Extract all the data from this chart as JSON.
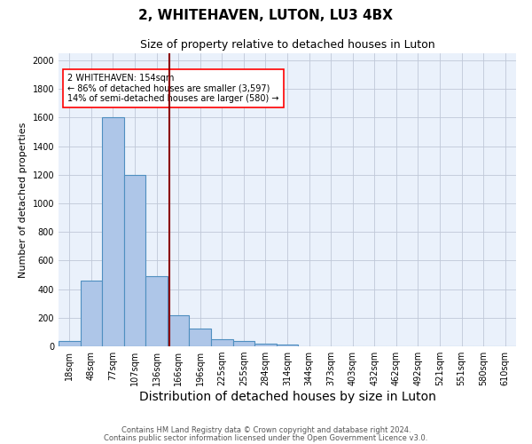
{
  "title": "2, WHITEHAVEN, LUTON, LU3 4BX",
  "subtitle": "Size of property relative to detached houses in Luton",
  "xlabel": "Distribution of detached houses by size in Luton",
  "ylabel": "Number of detached properties",
  "footnote1": "Contains HM Land Registry data © Crown copyright and database right 2024.",
  "footnote2": "Contains public sector information licensed under the Open Government Licence v3.0.",
  "bar_labels": [
    "18sqm",
    "48sqm",
    "77sqm",
    "107sqm",
    "136sqm",
    "166sqm",
    "196sqm",
    "225sqm",
    "255sqm",
    "284sqm",
    "314sqm",
    "344sqm",
    "373sqm",
    "403sqm",
    "432sqm",
    "462sqm",
    "492sqm",
    "521sqm",
    "551sqm",
    "580sqm",
    "610sqm"
  ],
  "bar_values": [
    35,
    460,
    1600,
    1200,
    490,
    215,
    125,
    50,
    35,
    20,
    10,
    0,
    0,
    0,
    0,
    0,
    0,
    0,
    0,
    0,
    0
  ],
  "bar_color": "#aec6e8",
  "bar_edgecolor": "#4f8fc0",
  "vline_x": 5.1,
  "vline_color": "#8b0000",
  "annotation_text": "2 WHITEHAVEN: 154sqm\n← 86% of detached houses are smaller (3,597)\n14% of semi-detached houses are larger (580) →",
  "annotation_box_color": "white",
  "annotation_box_edgecolor": "red",
  "ylim": [
    0,
    2050
  ],
  "yticks": [
    0,
    200,
    400,
    600,
    800,
    1000,
    1200,
    1400,
    1600,
    1800,
    2000
  ],
  "bg_color": "#eaf1fb",
  "fig_bg_color": "#ffffff",
  "grid_color": "#c0c8d8",
  "title_fontsize": 11,
  "subtitle_fontsize": 9,
  "xlabel_fontsize": 10,
  "ylabel_fontsize": 8,
  "tick_fontsize": 7,
  "annotation_fontsize": 7,
  "footnote_fontsize": 6
}
